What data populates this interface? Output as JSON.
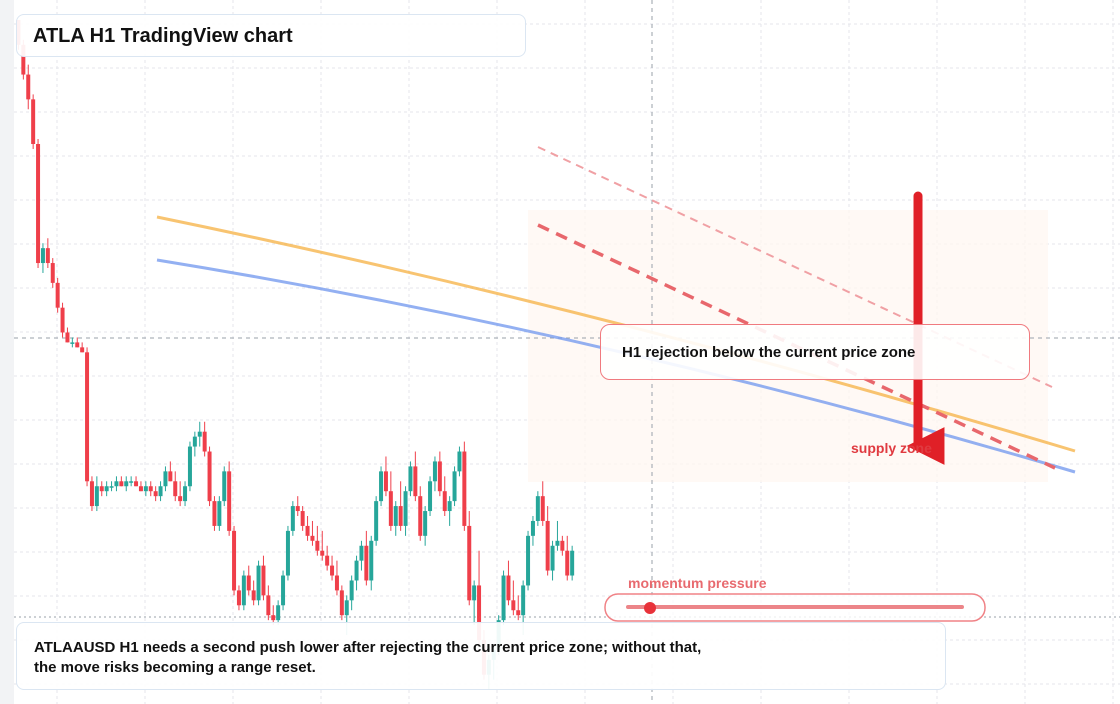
{
  "title": "ATLA H1 TradingView chart",
  "callout": "H1 rejection below the current price zone",
  "labels": {
    "supply": "supply zone",
    "momentum": "momentum pressure"
  },
  "caption": {
    "line1": "ATLAAUSD H1 needs a second push lower after rejecting the current price zone; without that,",
    "line2": "the move risks becoming a range reset."
  },
  "colors": {
    "up": "#26a69a",
    "down": "#ef3f4a",
    "ma_fast": "#f5b041",
    "ma_slow": "#6f95ee",
    "signal": "#e02027",
    "grid": "#e4e6eb"
  },
  "chart_data": {
    "type": "candlestick",
    "title": "ATLA H1 TradingView chart",
    "price_range": [
      0,
      100
    ],
    "current_price_level": 81.5,
    "grid": true,
    "candles": [
      [
        100,
        100,
        94,
        95
      ],
      [
        95,
        96,
        88,
        89
      ],
      [
        89,
        91,
        82,
        84
      ],
      [
        84,
        85,
        74,
        75
      ],
      [
        75,
        76,
        50,
        51
      ],
      [
        51,
        55,
        49,
        54
      ],
      [
        54,
        56,
        50,
        51
      ],
      [
        51,
        52,
        46,
        47
      ],
      [
        47,
        48,
        41,
        42
      ],
      [
        42,
        43,
        36,
        37
      ],
      [
        37,
        38,
        35,
        35
      ],
      [
        35,
        36,
        34,
        35
      ],
      [
        35,
        36,
        34,
        34
      ],
      [
        34,
        35,
        33,
        33
      ],
      [
        33,
        34,
        6,
        7
      ],
      [
        7,
        8,
        1,
        2
      ],
      [
        2,
        8,
        1,
        6
      ],
      [
        6,
        7,
        4,
        5
      ],
      [
        5,
        7,
        4,
        6
      ],
      [
        6,
        7,
        5,
        6
      ],
      [
        6,
        8,
        5,
        7
      ],
      [
        7,
        8,
        6,
        6
      ],
      [
        6,
        8,
        5,
        7
      ],
      [
        7,
        8,
        6,
        7
      ],
      [
        7,
        8,
        6,
        6
      ],
      [
        6,
        7,
        5,
        5
      ],
      [
        5,
        7,
        4,
        6
      ],
      [
        6,
        7,
        4,
        5
      ],
      [
        5,
        6,
        3,
        4
      ],
      [
        4,
        7,
        3,
        6
      ],
      [
        6,
        10,
        5,
        9
      ],
      [
        9,
        11,
        7,
        7
      ],
      [
        7,
        9,
        3,
        4
      ],
      [
        4,
        7,
        2,
        3
      ],
      [
        3,
        7,
        2,
        6
      ],
      [
        6,
        15,
        5,
        14
      ],
      [
        14,
        17,
        12,
        16
      ],
      [
        16,
        19,
        14,
        17
      ],
      [
        17,
        19,
        12,
        13
      ],
      [
        13,
        14,
        2,
        3
      ],
      [
        3,
        4,
        -3,
        -2
      ],
      [
        -2,
        4,
        -3,
        3
      ],
      [
        3,
        10,
        2,
        9
      ],
      [
        9,
        11,
        -4,
        -3
      ],
      [
        -3,
        -2,
        -16,
        -15
      ],
      [
        -15,
        -14,
        -19,
        -18
      ],
      [
        -18,
        -11,
        -19,
        -12
      ],
      [
        -12,
        -10,
        -16,
        -15
      ],
      [
        -15,
        -13,
        -18,
        -17
      ],
      [
        -17,
        -9,
        -18,
        -10
      ],
      [
        -10,
        -8,
        -17,
        -16
      ],
      [
        -16,
        -14,
        -21,
        -20
      ],
      [
        -20,
        -18,
        -22,
        -21
      ],
      [
        -21,
        -17,
        -22,
        -18
      ],
      [
        -18,
        -11,
        -19,
        -12
      ],
      [
        -12,
        -2,
        -13,
        -3
      ],
      [
        -3,
        3,
        -4,
        2
      ],
      [
        2,
        4,
        0,
        1
      ],
      [
        1,
        2,
        -3,
        -2
      ],
      [
        -2,
        0,
        -5,
        -4
      ],
      [
        -4,
        -1,
        -6,
        -5
      ],
      [
        -5,
        -2,
        -8,
        -7
      ],
      [
        -7,
        -3,
        -9,
        -8
      ],
      [
        -8,
        -6,
        -11,
        -10
      ],
      [
        -10,
        -8,
        -13,
        -12
      ],
      [
        -12,
        -9,
        -16,
        -15
      ],
      [
        -15,
        -14,
        -21,
        -20
      ],
      [
        -20,
        -16,
        -24,
        -17
      ],
      [
        -17,
        -12,
        -19,
        -13
      ],
      [
        -13,
        -8,
        -15,
        -9
      ],
      [
        -9,
        -5,
        -11,
        -6
      ],
      [
        -6,
        -3,
        -14,
        -13
      ],
      [
        -13,
        -4,
        -15,
        -5
      ],
      [
        -5,
        4,
        -6,
        3
      ],
      [
        3,
        10,
        2,
        9
      ],
      [
        9,
        12,
        4,
        5
      ],
      [
        5,
        9,
        -3,
        -2
      ],
      [
        -2,
        3,
        -4,
        2
      ],
      [
        2,
        7,
        -3,
        -2
      ],
      [
        -2,
        6,
        -4,
        5
      ],
      [
        5,
        11,
        4,
        10
      ],
      [
        10,
        13,
        3,
        4
      ],
      [
        4,
        6,
        -5,
        -4
      ],
      [
        -4,
        2,
        -6,
        1
      ],
      [
        1,
        8,
        0,
        7
      ],
      [
        7,
        12,
        5,
        11
      ],
      [
        11,
        13,
        4,
        5
      ],
      [
        5,
        8,
        0,
        1
      ],
      [
        1,
        4,
        -2,
        3
      ],
      [
        3,
        10,
        2,
        9
      ],
      [
        9,
        14,
        8,
        13
      ],
      [
        13,
        15,
        -3,
        -2
      ],
      [
        -2,
        1,
        -18,
        -17
      ],
      [
        -17,
        -13,
        -22,
        -14
      ],
      [
        -14,
        -7,
        -26,
        -25
      ],
      [
        -25,
        -23,
        -33,
        -32
      ],
      [
        -32,
        -28,
        -35,
        -29
      ],
      [
        -29,
        -26,
        -33,
        -27
      ],
      [
        -27,
        -20,
        -28,
        -21
      ],
      [
        -21,
        -11,
        -22,
        -12
      ],
      [
        -12,
        -9,
        -18,
        -17
      ],
      [
        -17,
        -13,
        -20,
        -19
      ],
      [
        -19,
        -16,
        -21,
        -20
      ],
      [
        -20,
        -13,
        -24,
        -14
      ],
      [
        -14,
        -3,
        -15,
        -4
      ],
      [
        -4,
        0,
        -6,
        -1
      ],
      [
        -1,
        5,
        -2,
        4
      ],
      [
        4,
        7,
        -2,
        -1
      ],
      [
        -1,
        2,
        -12,
        -11
      ],
      [
        -11,
        -5,
        -13,
        -6
      ],
      [
        -6,
        -1,
        -7,
        -5
      ],
      [
        -5,
        -4,
        -8,
        -7
      ],
      [
        -7,
        -4,
        -13,
        -12
      ],
      [
        -12,
        -6,
        -13,
        -7
      ]
    ],
    "lines": [
      {
        "color": "#f5b041",
        "points": [
          [
            0,
            73
          ],
          [
            0.5,
            59
          ],
          [
            1,
            49
          ]
        ]
      },
      {
        "color": "#6f95ee",
        "points": [
          [
            0,
            65
          ],
          [
            0.5,
            46
          ],
          [
            1,
            21
          ]
        ]
      }
    ],
    "zones": [
      {
        "label": "supply zone",
        "from": 22,
        "to": 61
      }
    ],
    "annotations": [
      "H1 rejection below the current price zone",
      "supply zone",
      "momentum pressure"
    ]
  }
}
